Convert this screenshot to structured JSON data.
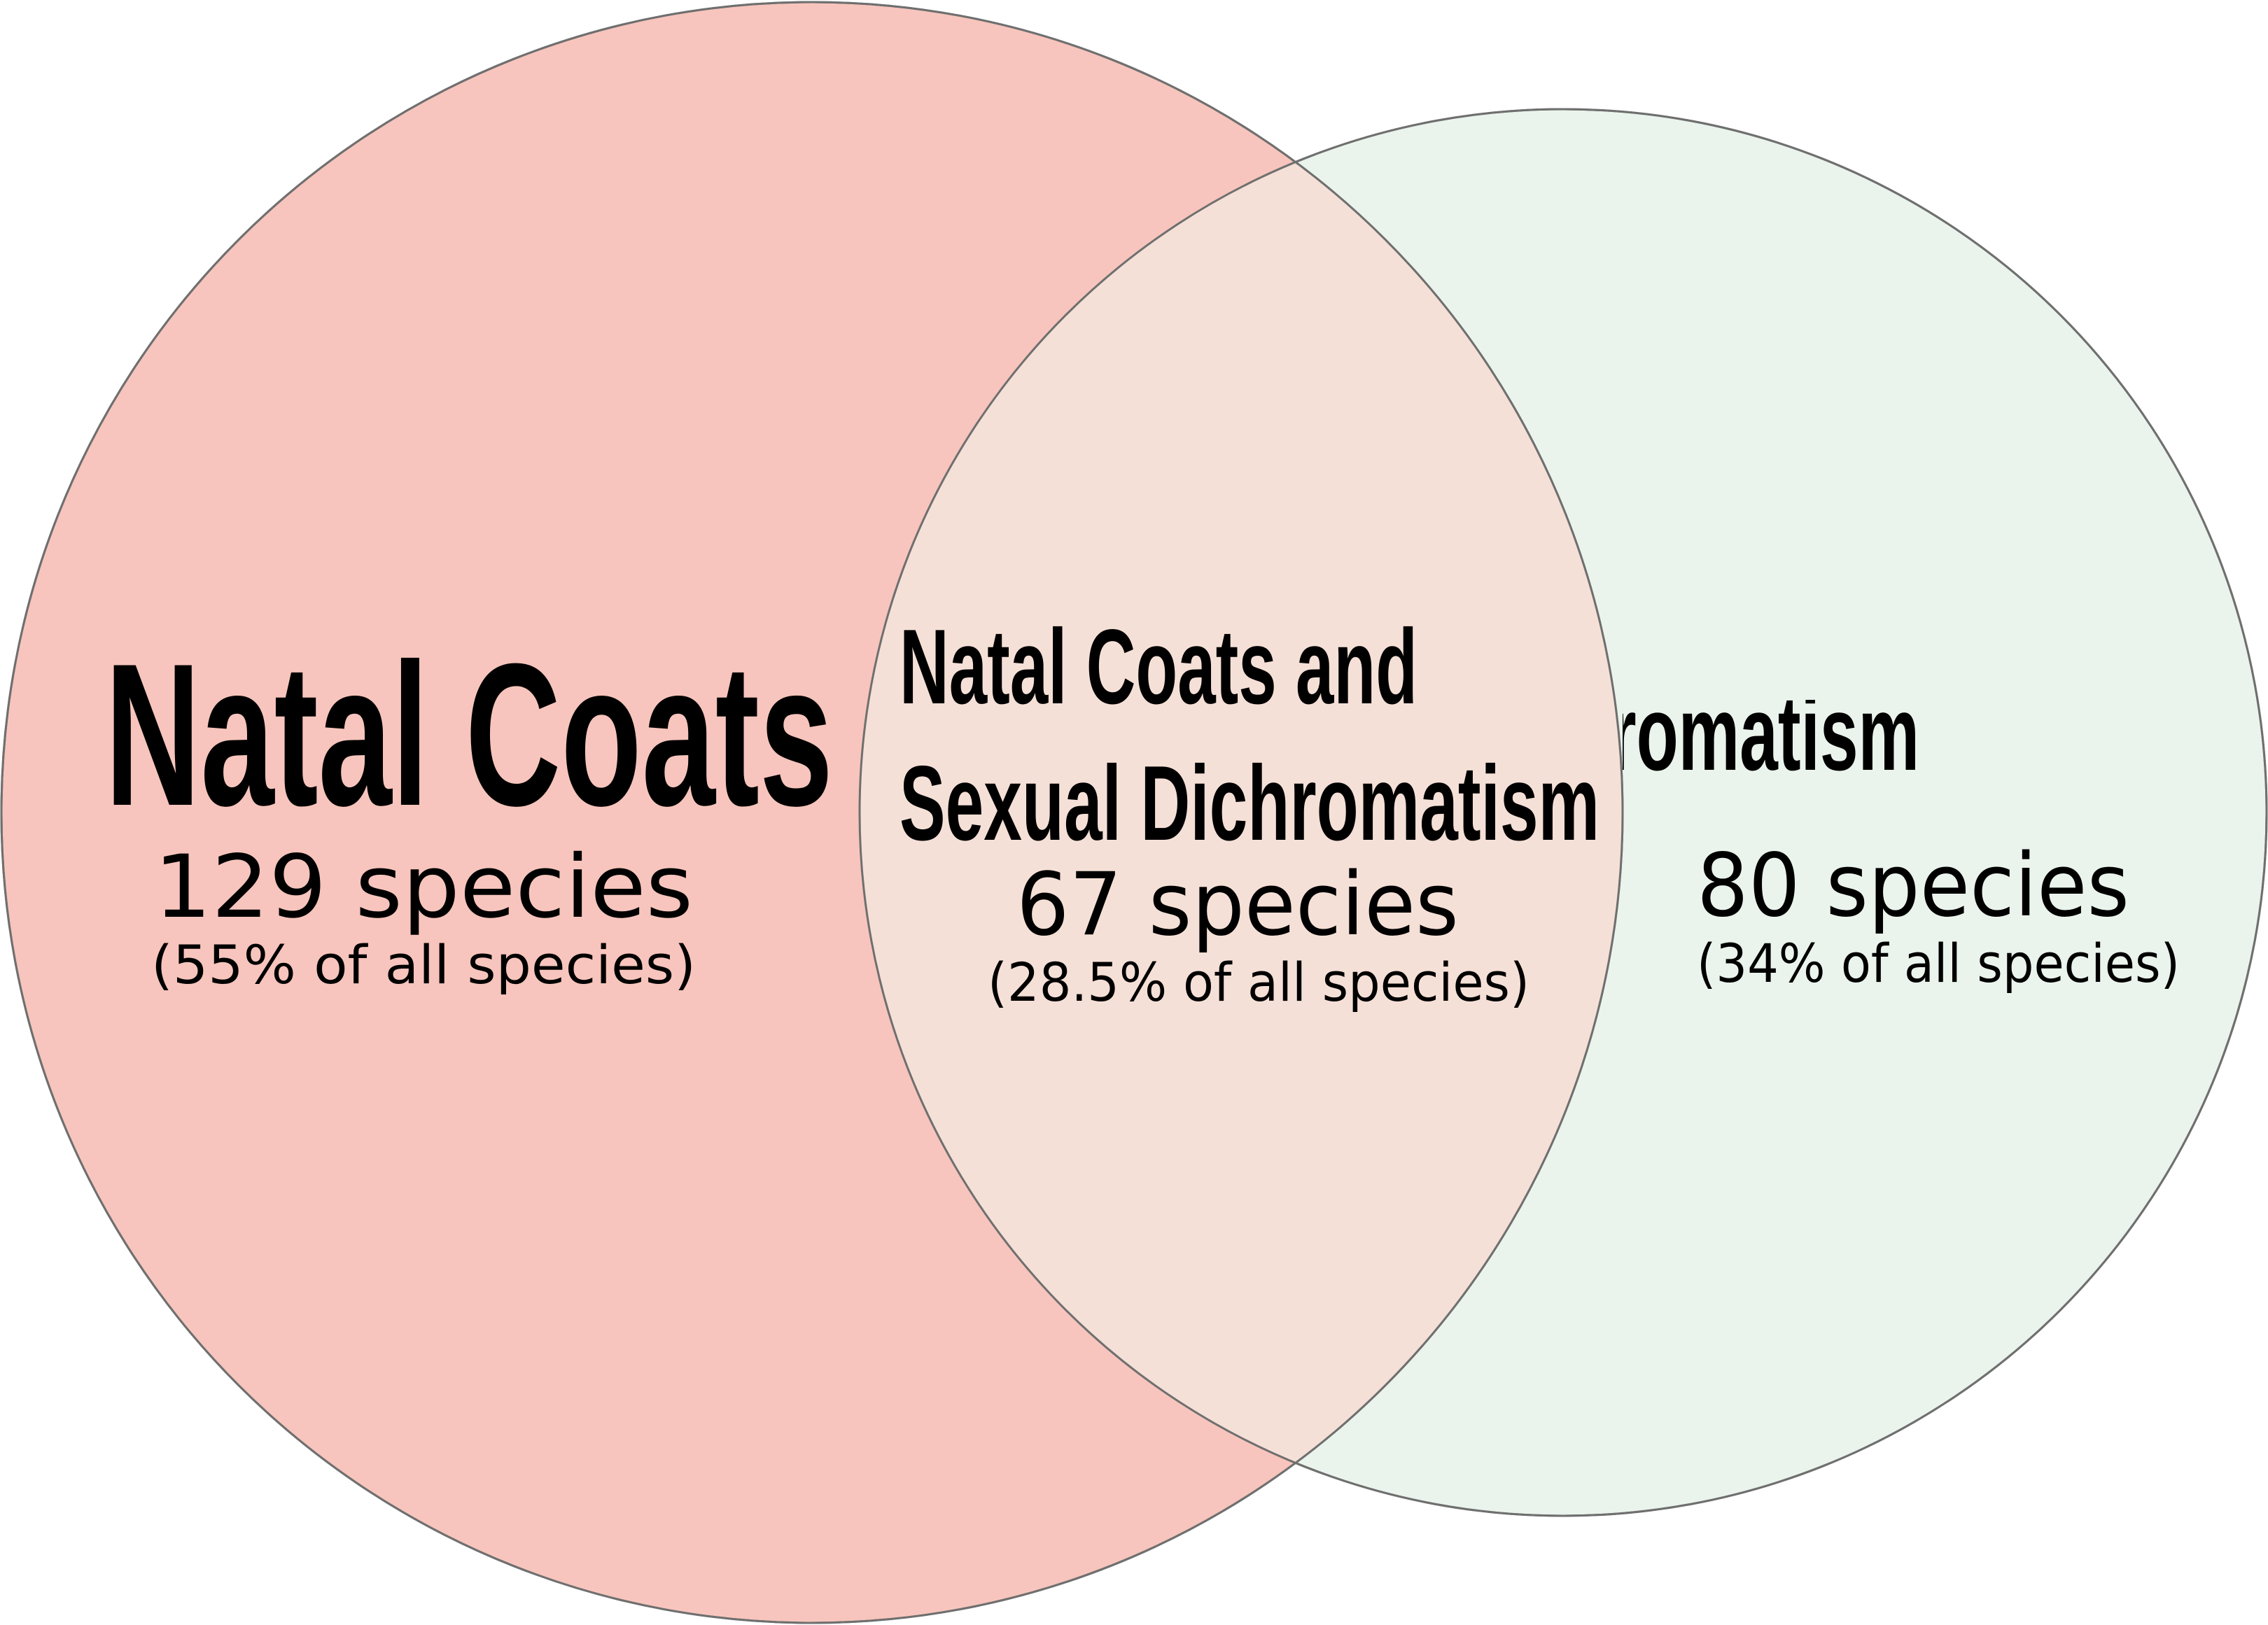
{
  "colors": {
    "left_circle": "#f7c5bd",
    "right_circle": "#eaf4ec",
    "overlap": "#f5e0d7",
    "outline": "#6f6f6f",
    "text": "#000000"
  },
  "sets": {
    "left": {
      "title": "Natal Coats",
      "count": "129 species",
      "percent": "(55% of all species)"
    },
    "overlap": {
      "title_line1": "Natal Coats and",
      "title_line2": "Sexual Dichromatism",
      "count": "67 species",
      "percent": "(28.5% of all species)"
    },
    "right": {
      "title": "Sexual Dichromatism",
      "count": "80 species",
      "percent": "(34% of all species)"
    }
  }
}
